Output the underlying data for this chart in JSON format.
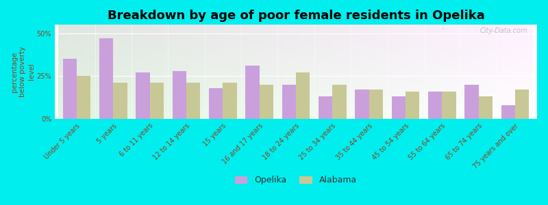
{
  "title": "Breakdown by age of poor female residents in Opelika",
  "ylabel": "percentage\nbelow poverty\nlevel",
  "categories": [
    "Under 5 years",
    "5 years",
    "6 to 11 years",
    "12 to 14 years",
    "15 years",
    "16 and 17 years",
    "18 to 24 years",
    "25 to 34 years",
    "35 to 44 years",
    "45 to 54 years",
    "55 to 64 years",
    "65 to 74 years",
    "75 years and over"
  ],
  "opelika_values": [
    35,
    47,
    27,
    28,
    18,
    31,
    20,
    13,
    17,
    13,
    16,
    20,
    8
  ],
  "alabama_values": [
    25,
    21,
    21,
    21,
    21,
    20,
    27,
    20,
    17,
    16,
    16,
    13,
    17
  ],
  "opelika_color": "#c9a0dc",
  "alabama_color": "#c8c896",
  "background_color": "#00eeee",
  "yticks": [
    0,
    25,
    50
  ],
  "ytick_labels": [
    "0%",
    "25%",
    "50%"
  ],
  "ylim": [
    0,
    55
  ],
  "bar_width": 0.38,
  "title_fontsize": 13,
  "axis_label_fontsize": 7.5,
  "tick_fontsize": 7,
  "legend_opelika": "Opelika",
  "legend_alabama": "Alabama",
  "watermark": "City-Data.com",
  "text_color": "#884422"
}
